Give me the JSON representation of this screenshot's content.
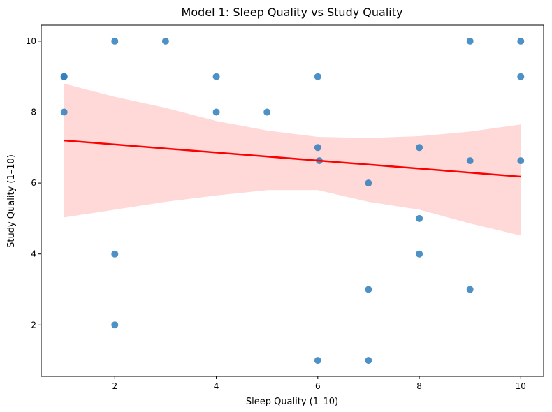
{
  "chart_data": {
    "type": "scatter",
    "title": "Model 1: Sleep Quality vs Study Quality",
    "xlabel": "Sleep Quality (1–10)",
    "ylabel": "Study Quality (1–10)",
    "xlim": [
      0.55,
      10.45
    ],
    "ylim": [
      0.55,
      10.45
    ],
    "xticks": [
      2,
      4,
      6,
      8,
      10
    ],
    "yticks": [
      2,
      4,
      6,
      8,
      10
    ],
    "grid": false,
    "points": [
      {
        "x": 1,
        "y": 9
      },
      {
        "x": 1,
        "y": 9
      },
      {
        "x": 1,
        "y": 8
      },
      {
        "x": 2,
        "y": 10
      },
      {
        "x": 2,
        "y": 4
      },
      {
        "x": 2,
        "y": 2
      },
      {
        "x": 3,
        "y": 10
      },
      {
        "x": 4,
        "y": 9
      },
      {
        "x": 4,
        "y": 8
      },
      {
        "x": 5,
        "y": 8
      },
      {
        "x": 6,
        "y": 9
      },
      {
        "x": 6,
        "y": 7
      },
      {
        "x": 6.03,
        "y": 6.63
      },
      {
        "x": 6,
        "y": 1
      },
      {
        "x": 7,
        "y": 6
      },
      {
        "x": 7,
        "y": 3
      },
      {
        "x": 7,
        "y": 1
      },
      {
        "x": 8,
        "y": 7
      },
      {
        "x": 8,
        "y": 5
      },
      {
        "x": 8,
        "y": 4
      },
      {
        "x": 9,
        "y": 10
      },
      {
        "x": 9,
        "y": 6.63
      },
      {
        "x": 9,
        "y": 3
      },
      {
        "x": 10,
        "y": 10
      },
      {
        "x": 10,
        "y": 9
      },
      {
        "x": 10,
        "y": 6.63
      }
    ],
    "regression": {
      "line": [
        {
          "x": 1,
          "y": 7.2
        },
        {
          "x": 10,
          "y": 6.18
        }
      ],
      "ci_band": [
        {
          "x": 1,
          "lo": 5.03,
          "hi": 8.8
        },
        {
          "x": 2,
          "lo": 5.25,
          "hi": 8.43
        },
        {
          "x": 3,
          "lo": 5.47,
          "hi": 8.12
        },
        {
          "x": 4,
          "lo": 5.65,
          "hi": 7.75
        },
        {
          "x": 5,
          "lo": 5.8,
          "hi": 7.48
        },
        {
          "x": 6,
          "lo": 5.8,
          "hi": 7.3
        },
        {
          "x": 7,
          "lo": 5.47,
          "hi": 7.27
        },
        {
          "x": 8,
          "lo": 5.25,
          "hi": 7.32
        },
        {
          "x": 9,
          "lo": 4.86,
          "hi": 7.45
        },
        {
          "x": 10,
          "lo": 4.52,
          "hi": 7.65
        }
      ],
      "line_color": "#ff0000",
      "band_color": "#ffd6d6"
    },
    "point_color": "#2f7ebc"
  }
}
